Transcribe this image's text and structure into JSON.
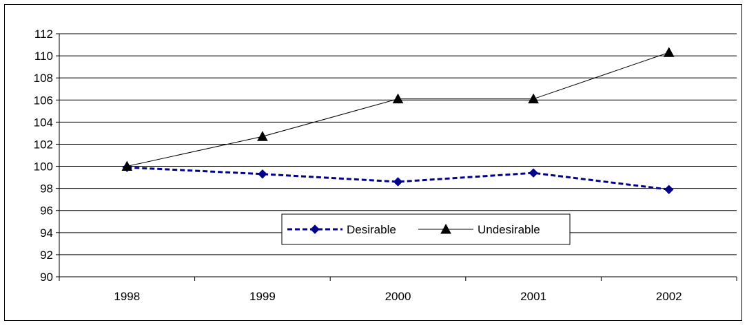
{
  "chart_data": {
    "type": "line",
    "categories": [
      "1998",
      "1999",
      "2000",
      "2001",
      "2002"
    ],
    "series": [
      {
        "name": "Desirable",
        "values": [
          99.9,
          99.3,
          98.6,
          99.4,
          97.9
        ],
        "color": "#00008B",
        "marker": "diamond",
        "line": "dashed"
      },
      {
        "name": "Undesirable",
        "values": [
          100.0,
          102.7,
          106.1,
          106.1,
          110.3
        ],
        "color": "#000000",
        "marker": "triangle",
        "line": "solid"
      }
    ],
    "ylim": [
      90,
      112
    ],
    "yticks": [
      90,
      92,
      94,
      96,
      98,
      100,
      102,
      104,
      106,
      108,
      110,
      112
    ],
    "grid": true,
    "legend": "bottom-center",
    "title": "",
    "xlabel": "",
    "ylabel": ""
  }
}
